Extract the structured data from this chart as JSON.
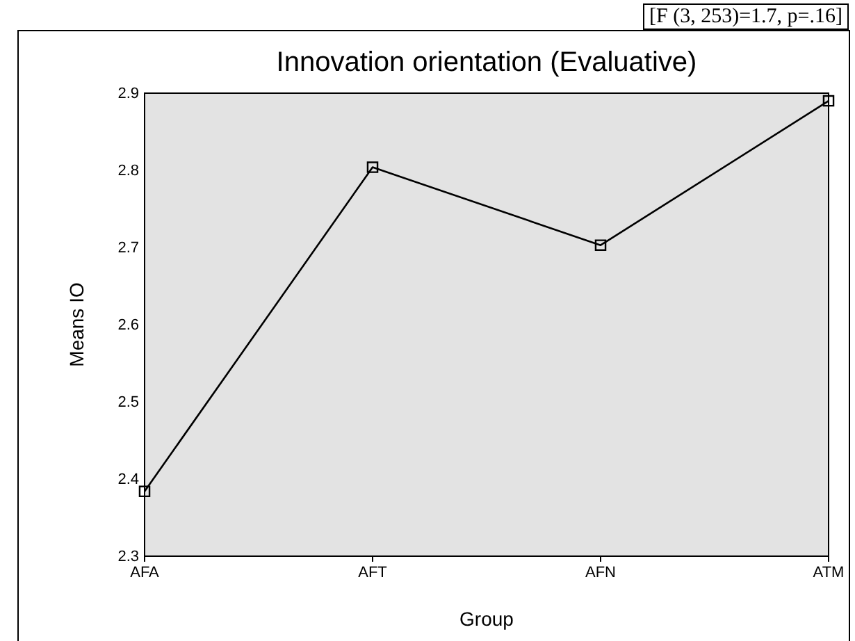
{
  "chart_data": {
    "type": "line",
    "title": "Innovation orientation (Evaluative)",
    "xlabel": "Group",
    "ylabel": "Means IO",
    "annotations": [
      "[F (3, 253)=1.7, p=.16]"
    ],
    "categories": [
      "AFA",
      "AFT",
      "AFN",
      "ATM"
    ],
    "series": [
      {
        "color": "#000000",
        "values": [
          2.384,
          2.804,
          2.703,
          2.89
        ]
      }
    ],
    "ylim": [
      2.3,
      2.9
    ],
    "yticks": [
      2.3,
      2.4,
      2.5,
      2.6,
      2.7,
      2.8,
      2.9
    ],
    "marker": "square",
    "line_style": "solid"
  }
}
